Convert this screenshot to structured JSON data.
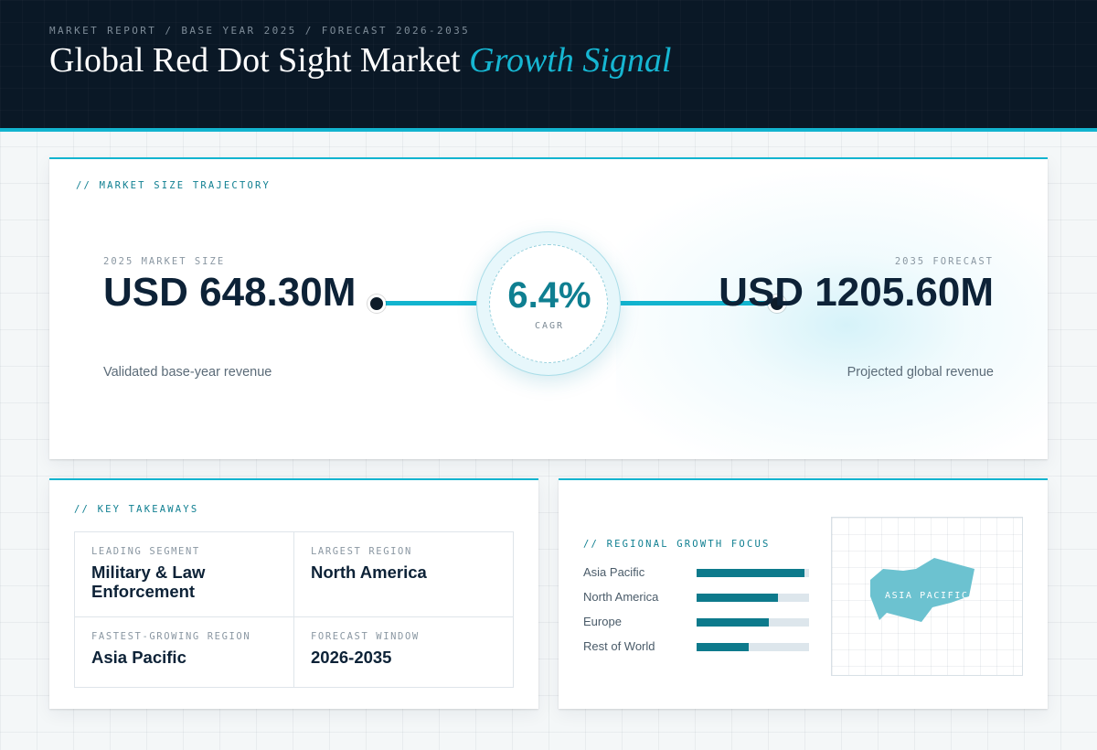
{
  "header": {
    "eyebrow": "MARKET REPORT / BASE YEAR 2025 / FORECAST 2026-2035",
    "title": "Global Red Dot Sight Market",
    "title_accent": "Growth Signal"
  },
  "trajectory": {
    "label": "// MARKET SIZE TRAJECTORY",
    "start": {
      "caption": "2025 MARKET SIZE",
      "value": "USD 648.30M",
      "sub": "Validated base-year revenue"
    },
    "cagr": {
      "value": "6.4%",
      "label": "CAGR"
    },
    "end": {
      "caption": "2035 FORECAST",
      "value": "USD 1205.60M",
      "sub": "Projected global revenue"
    }
  },
  "takeaways": {
    "label": "// KEY TAKEAWAYS",
    "items": [
      {
        "caption": "LEADING SEGMENT",
        "value": "Military & Law Enforcement"
      },
      {
        "caption": "LARGEST REGION",
        "value": "North America"
      },
      {
        "caption": "FASTEST-GROWING REGION",
        "value": "Asia Pacific"
      },
      {
        "caption": "FORECAST WINDOW",
        "value": "2026-2035"
      }
    ]
  },
  "regional": {
    "label": "// REGIONAL GROWTH FOCUS",
    "bars": [
      {
        "name": "Asia Pacific",
        "level": 0.96
      },
      {
        "name": "North America",
        "level": 0.72
      },
      {
        "name": "Europe",
        "level": 0.64
      },
      {
        "name": "Rest of World",
        "level": 0.46
      }
    ],
    "map_label": "ASIA PACIFIC",
    "colors": {
      "bar": "#0d7a8c",
      "track": "#dde6ec",
      "map": "#6cc2d0"
    }
  },
  "colors": {
    "accent": "#12b4cf",
    "header_bg": "#0a1826",
    "ink": "#0d2237"
  }
}
